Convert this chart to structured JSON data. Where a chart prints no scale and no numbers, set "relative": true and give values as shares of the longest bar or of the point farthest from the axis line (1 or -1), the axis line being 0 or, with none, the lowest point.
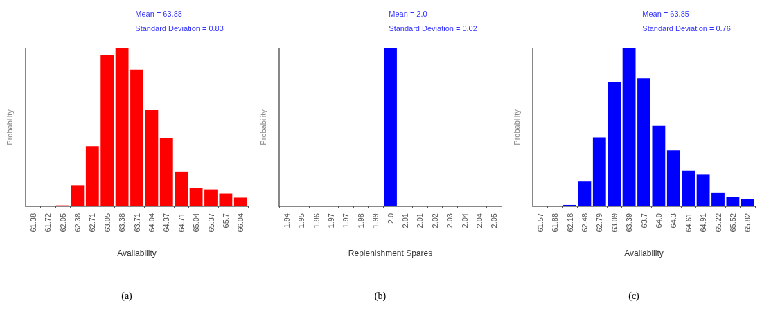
{
  "chart_data": [
    {
      "type": "bar",
      "title": "(a)",
      "annotations": [
        "Mean = 63.88",
        "Standard Deviation = 0.83"
      ],
      "xlabel": "Availability",
      "ylabel": "Probability",
      "relative": true,
      "color": "#ff0000",
      "grid": false,
      "categories": [
        "61.38",
        "61.72",
        "62.05",
        "62.38",
        "62.71",
        "63.05",
        "63.38",
        "63.71",
        "64.04",
        "64.37",
        "64.71",
        "65.04",
        "65.37",
        "65.7",
        "66.04"
      ],
      "values": [
        0,
        0,
        0.006,
        0.13,
        0.38,
        0.96,
        1,
        0.865,
        0.61,
        0.43,
        0.22,
        0.116,
        0.107,
        0.081,
        0.055
      ]
    },
    {
      "type": "bar",
      "title": "(b)",
      "annotations": [
        "Mean = 2.0",
        "Standard Deviation = 0.02"
      ],
      "xlabel": "Replenishment Spares",
      "ylabel": "Probability",
      "relative": true,
      "color": "#0000ff",
      "grid": false,
      "categories": [
        "1.94",
        "1.95",
        "1.96",
        "1.97",
        "1.97",
        "1.98",
        "1.99",
        "2.0",
        "2.01",
        "2.01",
        "2.02",
        "2.03",
        "2.04",
        "2.04",
        "2.05"
      ],
      "values": [
        0,
        0,
        0,
        0,
        0,
        0,
        0,
        1,
        0,
        0,
        0,
        0,
        0,
        0,
        0
      ]
    },
    {
      "type": "bar",
      "title": "(c)",
      "annotations": [
        "Mean = 63.85",
        "Standard Deviation = 0.76"
      ],
      "xlabel": "Availability",
      "ylabel": "Probability",
      "relative": true,
      "color": "#0000ff",
      "grid": false,
      "categories": [
        "61.57",
        "61.88",
        "62.18",
        "62.48",
        "62.79",
        "63.09",
        "63.39",
        "63.7",
        "64.0",
        "64.3",
        "64.61",
        "64.91",
        "65.22",
        "65.52",
        "65.82"
      ],
      "values": [
        0,
        0,
        0.009,
        0.157,
        0.436,
        0.79,
        1,
        0.81,
        0.51,
        0.354,
        0.225,
        0.2,
        0.084,
        0.058,
        0.045
      ]
    }
  ]
}
